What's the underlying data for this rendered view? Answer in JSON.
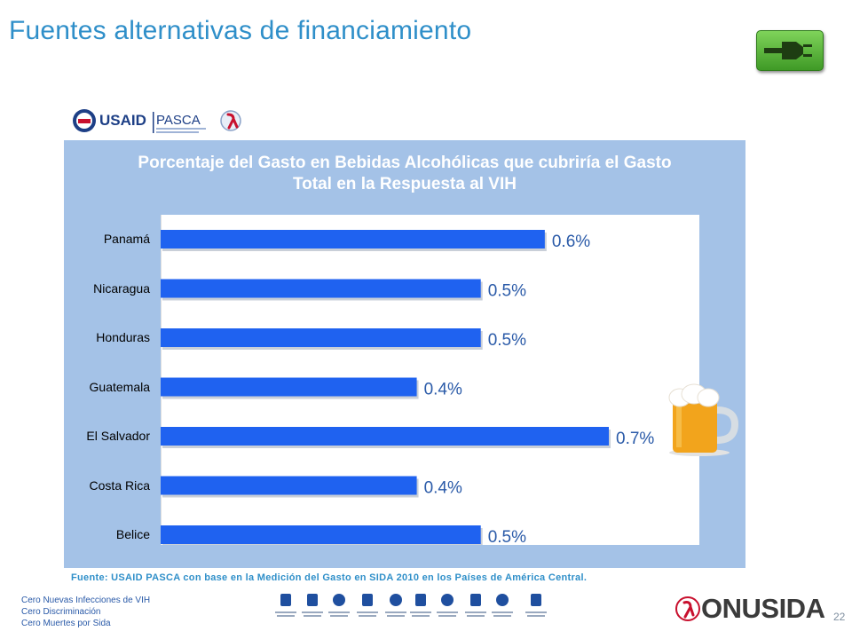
{
  "slide": {
    "title": "Fuentes alternativas de financiamiento",
    "page_number": "22",
    "tagline": [
      "Cero Nuevas Infecciones de VIH",
      "Cero Discriminación",
      "Cero Muertes por Sida"
    ],
    "source_note": "Fuente: USAID PASCA con base en la Medición del Gasto en SIDA 2010 en los Países de América Central.",
    "partner_logo_text": {
      "usaid": "USAID",
      "pasca": "PASCA"
    },
    "brand_logo_text": "ONUSIDA"
  },
  "colors": {
    "title": "#2f8fc9",
    "panel": "#a4c2e7",
    "bar": "#1f62f0",
    "label": "#2a5aa8"
  },
  "icons": [
    "plug-icon",
    "beer-mug-icon",
    "usaid-logo-icon",
    "pasca-logo-icon",
    "red-ribbon-icon",
    "onusida-ribbon-icon"
  ],
  "chart_data": {
    "type": "bar",
    "orientation": "horizontal",
    "title": "Porcentaje del Gasto en Bebidas Alcohólicas que cubriría el Gasto Total en la Respuesta al VIH",
    "categories": [
      "Panamá",
      "Nicaragua",
      "Honduras",
      "Guatemala",
      "El Salvador",
      "Costa Rica",
      "Belice"
    ],
    "values": [
      0.6,
      0.5,
      0.5,
      0.4,
      0.7,
      0.4,
      0.5
    ],
    "value_labels": [
      "0.6%",
      "0.5%",
      "0.5%",
      "0.4%",
      "0.7%",
      "0.4%",
      "0.5%"
    ],
    "unit": "%",
    "xlim": [
      0,
      0.72
    ],
    "grid": false,
    "legend": "none"
  }
}
